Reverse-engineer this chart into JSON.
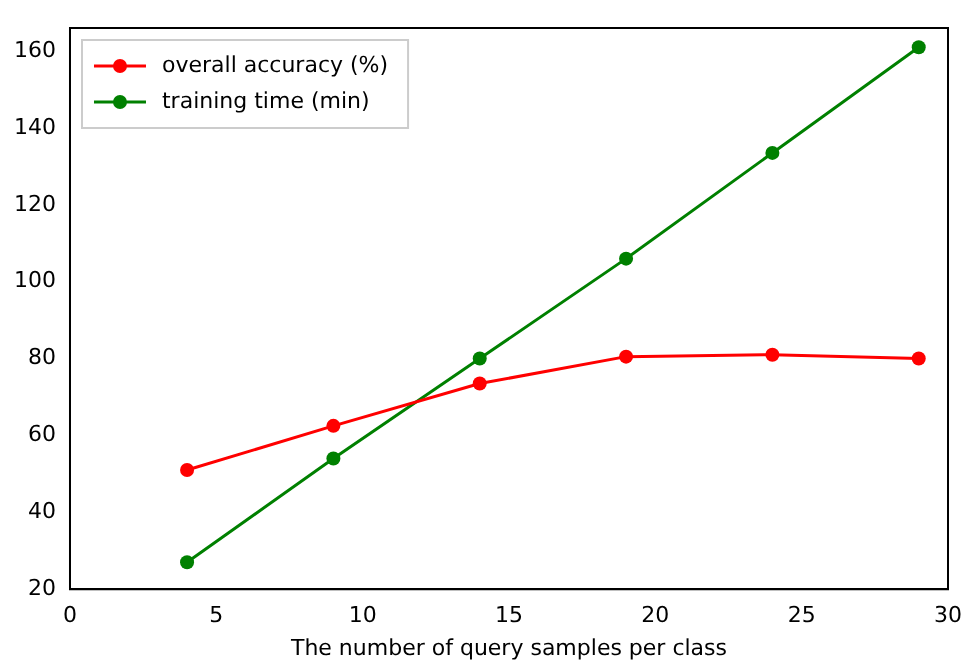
{
  "chart_data": {
    "type": "line",
    "xlabel": "The number of query samples per class",
    "x": [
      4,
      9,
      14,
      19,
      24,
      29
    ],
    "series": [
      {
        "name": "overall accuracy (%)",
        "color": "#ff0000",
        "values": [
          51,
          62.5,
          73.5,
          80.5,
          81,
          80
        ]
      },
      {
        "name": "training time (min)",
        "color": "#008000",
        "values": [
          27,
          54,
          80,
          106,
          133.5,
          161
        ]
      }
    ],
    "xlim": [
      0,
      30
    ],
    "xticks": [
      0,
      5,
      10,
      15,
      20,
      25,
      30
    ],
    "ylim": [
      20,
      166
    ],
    "yticks": [
      20,
      40,
      60,
      80,
      100,
      120,
      140,
      160
    ],
    "grid": false,
    "legend": "top left",
    "marker": "circle",
    "line_style": "solid"
  }
}
